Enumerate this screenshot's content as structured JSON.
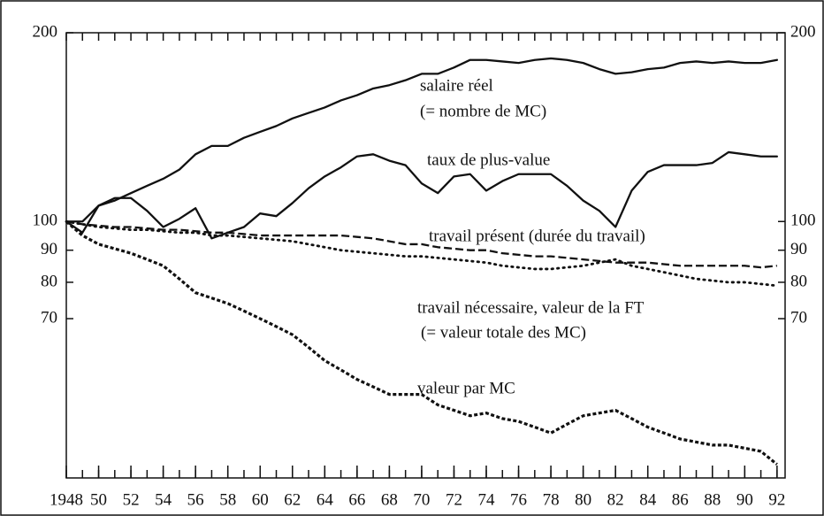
{
  "chart_data": {
    "type": "line",
    "x": [
      1948,
      1949,
      1950,
      1951,
      1952,
      1953,
      1954,
      1955,
      1956,
      1957,
      1958,
      1959,
      1960,
      1961,
      1962,
      1963,
      1964,
      1965,
      1966,
      1967,
      1968,
      1969,
      1970,
      1971,
      1972,
      1973,
      1974,
      1975,
      1976,
      1977,
      1978,
      1979,
      1980,
      1981,
      1982,
      1983,
      1984,
      1985,
      1986,
      1987,
      1988,
      1989,
      1990,
      1991,
      1992
    ],
    "xlim": [
      1948,
      1992.5
    ],
    "xticks": [
      1948,
      {
        "value": 1950,
        "label": "50"
      },
      {
        "value": 1952,
        "label": "52"
      },
      {
        "value": 1954,
        "label": "54"
      },
      {
        "value": 1956,
        "label": "56"
      },
      {
        "value": 1958,
        "label": "58"
      },
      {
        "value": 1960,
        "label": "60"
      },
      {
        "value": 1962,
        "label": "62"
      },
      {
        "value": 1964,
        "label": "64"
      },
      {
        "value": 1966,
        "label": "66"
      },
      {
        "value": 1968,
        "label": "68"
      },
      {
        "value": 1970,
        "label": "70"
      },
      {
        "value": 1972,
        "label": "72"
      },
      {
        "value": 1974,
        "label": "74"
      },
      {
        "value": 1976,
        "label": "76"
      },
      {
        "value": 1978,
        "label": "78"
      },
      {
        "value": 1980,
        "label": "80"
      },
      {
        "value": 1982,
        "label": "82"
      },
      {
        "value": 1984,
        "label": "84"
      },
      {
        "value": 1986,
        "label": "86"
      },
      {
        "value": 1988,
        "label": "88"
      },
      {
        "value": 1990,
        "label": "90"
      },
      {
        "value": 1992,
        "label": "92"
      }
    ],
    "ylim": [
      39,
      200
    ],
    "yticks": [
      70,
      80,
      90,
      100,
      200
    ],
    "log_scale": true,
    "series": [
      {
        "name": "salaire réel",
        "color": "#111111",
        "dash": "solid",
        "values": [
          100,
          100,
          106,
          108,
          111,
          114,
          117,
          121,
          128,
          132,
          132,
          136,
          139,
          142,
          146,
          149,
          152,
          156,
          159,
          163,
          165,
          168,
          172,
          172,
          176,
          181,
          181,
          180,
          179,
          181,
          182,
          181,
          179,
          175,
          172,
          173,
          175,
          176,
          179,
          180,
          179,
          180,
          179,
          179,
          181
        ]
      },
      {
        "name": "taux de plus-value",
        "color": "#111111",
        "dash": "solid",
        "values": [
          100,
          96,
          106,
          109,
          109,
          104,
          98,
          101,
          105,
          94,
          96,
          98,
          103,
          102,
          107,
          113,
          118,
          122,
          127,
          128,
          125,
          123,
          115,
          111,
          118,
          119,
          112,
          116,
          119,
          119,
          119,
          114,
          108,
          104,
          98,
          112,
          120,
          123,
          123,
          123,
          124,
          129,
          128,
          127,
          127
        ]
      },
      {
        "name": "travail présent (durée du travail)",
        "color": "#111111",
        "dash": "dashed",
        "values": [
          100,
          99,
          98.5,
          98,
          98,
          97.5,
          97,
          97,
          96.5,
          96,
          96,
          95.5,
          95,
          95,
          95,
          95,
          95,
          95,
          94.5,
          94,
          93,
          92,
          92,
          91,
          90.5,
          90,
          90,
          89,
          88.5,
          88,
          88,
          87.5,
          87,
          86.5,
          86,
          86,
          86,
          85.5,
          85,
          85,
          85,
          85,
          85,
          84.5,
          85
        ]
      },
      {
        "name": "travail nécessaire, valeur de la FT",
        "color": "#111111",
        "dash": "dotted",
        "values": [
          100,
          99,
          98,
          97.5,
          97,
          97,
          96.5,
          96,
          96,
          95,
          95,
          94.5,
          94,
          93.5,
          93,
          92,
          91,
          90,
          89.5,
          89,
          88.5,
          88,
          88,
          87.5,
          87,
          86.5,
          86,
          85,
          84.5,
          84,
          84,
          84.5,
          85,
          86,
          87,
          85,
          84,
          83,
          82,
          81,
          80.5,
          80,
          80,
          79.5,
          79
        ]
      },
      {
        "name": "valeur par MC",
        "color": "#111111",
        "dash": "dense",
        "values": [
          100,
          95,
          92,
          90.5,
          89,
          87,
          85,
          81,
          77,
          75.5,
          74,
          72,
          70,
          68,
          66,
          63,
          60,
          58,
          56,
          54.5,
          53,
          53,
          53,
          51,
          50,
          49,
          49.5,
          48.5,
          48,
          47,
          46,
          47.5,
          49,
          49.5,
          50,
          48.5,
          47,
          46,
          45,
          44.5,
          44,
          44,
          43.5,
          43,
          41
        ]
      }
    ],
    "annotations": [
      "(= nombre de MC)",
      "(= valeur totale des MC)"
    ]
  }
}
